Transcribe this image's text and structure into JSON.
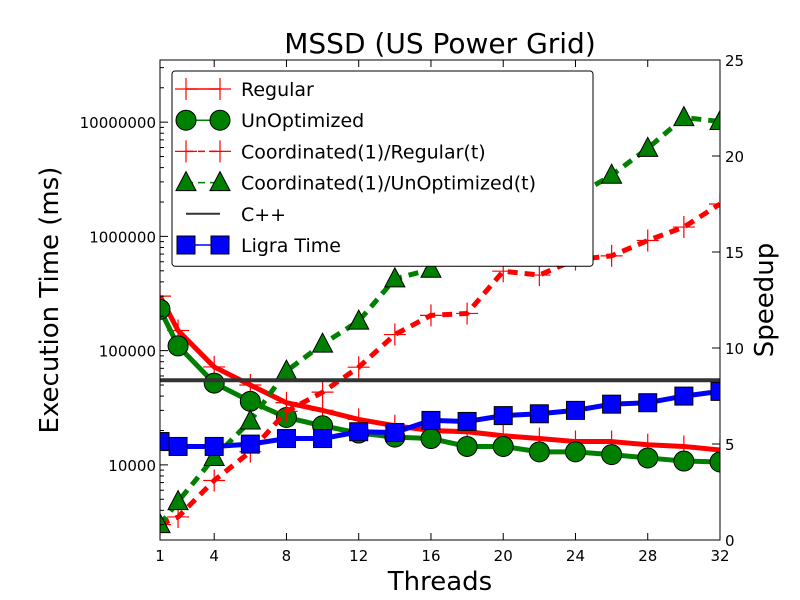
{
  "chart_data": {
    "type": "line",
    "title": "MSSD (US Power Grid)",
    "xlabel": "Threads",
    "ylabel_left": "Execution Time (ms)",
    "ylabel_right": "Speedup",
    "x_ticks": [
      "1",
      "4",
      "8",
      "12",
      "16",
      "20",
      "24",
      "28",
      "32"
    ],
    "x_range": [
      1,
      32
    ],
    "left_axis": {
      "scale": "log",
      "range": [
        2200,
        35000000
      ],
      "ticks": [
        "10000",
        "100000",
        "1000000",
        "10000000"
      ]
    },
    "right_axis": {
      "scale": "linear",
      "range": [
        0,
        25
      ],
      "ticks": [
        "0",
        "5",
        "10",
        "15",
        "20",
        "25"
      ]
    },
    "legend_position": "upper-left",
    "series": [
      {
        "name": "Regular",
        "axis": "left",
        "color": "#ff0000",
        "line": "solid",
        "marker": "plus",
        "points": [
          [
            1,
            300000
          ],
          [
            2,
            150000
          ],
          [
            4,
            72000
          ],
          [
            6,
            50000
          ],
          [
            8,
            35000
          ],
          [
            10,
            30000
          ],
          [
            12,
            25000
          ],
          [
            14,
            22000
          ],
          [
            16,
            20000
          ],
          [
            18,
            19500
          ],
          [
            20,
            18000
          ],
          [
            22,
            17000
          ],
          [
            24,
            16000
          ],
          [
            26,
            16000
          ],
          [
            28,
            15000
          ],
          [
            30,
            14500
          ],
          [
            32,
            13500
          ]
        ]
      },
      {
        "name": "UnOptimized",
        "axis": "left",
        "color": "#008000",
        "line": "solid",
        "marker": "circle",
        "points": [
          [
            1,
            230000
          ],
          [
            2,
            110000
          ],
          [
            4,
            52000
          ],
          [
            6,
            36000
          ],
          [
            8,
            26000
          ],
          [
            10,
            22000
          ],
          [
            12,
            19000
          ],
          [
            14,
            17500
          ],
          [
            16,
            17000
          ],
          [
            18,
            14500
          ],
          [
            20,
            14500
          ],
          [
            22,
            13000
          ],
          [
            24,
            13000
          ],
          [
            26,
            12300
          ],
          [
            28,
            11500
          ],
          [
            30,
            10800
          ],
          [
            32,
            10600
          ]
        ]
      },
      {
        "name": "Coordinated(1)/Regular(t)",
        "axis": "right",
        "color": "#ff0000",
        "line": "dashed",
        "marker": "plus",
        "points": [
          [
            1,
            0.8
          ],
          [
            2,
            1.2
          ],
          [
            4,
            3.1
          ],
          [
            6,
            4.6
          ],
          [
            8,
            6.7
          ],
          [
            10,
            7.7
          ],
          [
            12,
            9.0
          ],
          [
            14,
            10.7
          ],
          [
            16,
            11.7
          ],
          [
            18,
            11.8
          ],
          [
            20,
            14.0
          ],
          [
            22,
            13.8
          ],
          [
            24,
            14.6
          ],
          [
            26,
            14.8
          ],
          [
            28,
            15.6
          ],
          [
            30,
            16.3
          ],
          [
            32,
            17.5
          ]
        ]
      },
      {
        "name": "Coordinated(1)/UnOptimized(t)",
        "axis": "right",
        "color": "#008000",
        "line": "dashed",
        "marker": "triangle",
        "points": [
          [
            1,
            0.8
          ],
          [
            2,
            2.0
          ],
          [
            4,
            4.3
          ],
          [
            6,
            6.2
          ],
          [
            8,
            8.8
          ],
          [
            10,
            10.2
          ],
          [
            12,
            11.4
          ],
          [
            14,
            13.6
          ],
          [
            16,
            14.1
          ],
          [
            18,
            16.0
          ],
          [
            20,
            15.9
          ],
          [
            22,
            17.8
          ],
          [
            24,
            17.9
          ],
          [
            26,
            19.0
          ],
          [
            28,
            20.4
          ],
          [
            30,
            22.0
          ],
          [
            32,
            21.8
          ]
        ]
      },
      {
        "name": "C++",
        "axis": "left",
        "color": "#333333",
        "line": "solid",
        "marker": "none",
        "points": [
          [
            1,
            55000
          ],
          [
            32,
            55000
          ]
        ]
      },
      {
        "name": "Ligra Time",
        "axis": "left",
        "color": "#0000ff",
        "line": "solid",
        "marker": "square",
        "points": [
          [
            1,
            16000
          ],
          [
            2,
            14500
          ],
          [
            4,
            14500
          ],
          [
            6,
            15200
          ],
          [
            8,
            17000
          ],
          [
            10,
            17000
          ],
          [
            12,
            19500
          ],
          [
            14,
            19200
          ],
          [
            16,
            24500
          ],
          [
            18,
            24000
          ],
          [
            20,
            27000
          ],
          [
            22,
            28000
          ],
          [
            24,
            30000
          ],
          [
            26,
            34000
          ],
          [
            28,
            35000
          ],
          [
            30,
            40000
          ],
          [
            32,
            44000
          ]
        ]
      }
    ]
  }
}
